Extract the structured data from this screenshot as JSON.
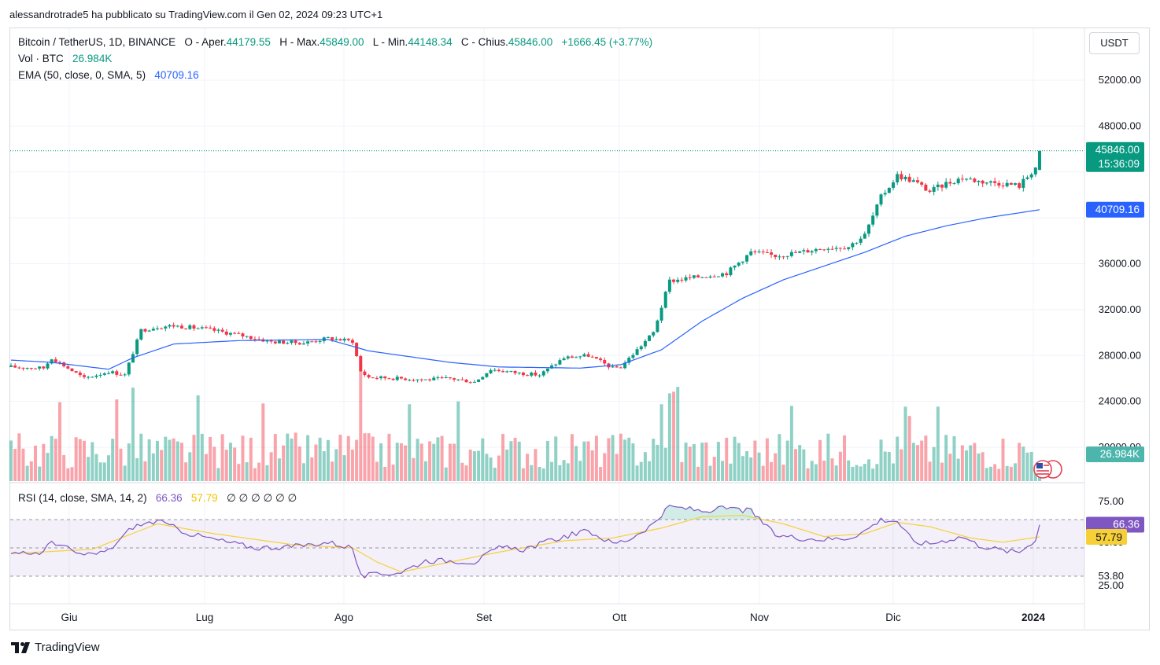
{
  "header": {
    "published_by": "alessandrotrade5 ha pubblicato su TradingView.com il Gen 02, 2024 09:23 UTC+1"
  },
  "symbol": {
    "name": "Bitcoin / TetherUS, 1D, BINANCE",
    "open_label": "O - Aper.",
    "open": "44179.55",
    "high_label": "H - Max.",
    "high": "45849.00",
    "low_label": "L - Min.",
    "low": "44148.34",
    "close_label": "C - Chius.",
    "close": "45846.00",
    "change": "+1666.45 (+3.77%)"
  },
  "volume_legend": {
    "label": "Vol · BTC",
    "value": "26.984K"
  },
  "ema_legend": {
    "label": "EMA (50, close, 0, SMA, 5)",
    "value": "40709.16"
  },
  "rsi_legend": {
    "label": "RSI (14, close, SMA, 14, 2)",
    "rsi": "66.36",
    "sma": "57.79",
    "extras": "∅ ∅ ∅ ∅ ∅ ∅"
  },
  "currency_button": "USDT",
  "footer": {
    "brand": "TradingView"
  },
  "colors": {
    "up": "#089981",
    "down": "#f23645",
    "ema": "#2962ff",
    "rsi": "#7e57c2",
    "rsi_sma": "#f7d038"
  },
  "chart_data": {
    "type": "candlestick",
    "price_axis": {
      "ticks": [
        "52000.00",
        "48000.00",
        "36000.00",
        "32000.00",
        "28000.00",
        "24000.00",
        "20000.00"
      ],
      "ylim": [
        19000,
        53500
      ]
    },
    "time_axis": {
      "labels": [
        "Giu",
        "Lug",
        "Ago",
        "Set",
        "Ott",
        "Nov",
        "Dic",
        "2024"
      ]
    },
    "price_badges": {
      "last": "45846.00",
      "countdown": "15:36:09",
      "ema": "40709.16",
      "volume": "26.984K"
    },
    "rsi_axis": {
      "ticks": [
        "75.00",
        "63.39",
        "53.80",
        "25.00"
      ],
      "badges": {
        "rsi": "66.36",
        "sma": "57.79"
      },
      "bands": [
        70,
        30
      ]
    },
    "price_anchors": [
      [
        0,
        27000
      ],
      [
        8,
        26900
      ],
      [
        10,
        27800
      ],
      [
        18,
        26000
      ],
      [
        24,
        26600
      ],
      [
        28,
        26300
      ],
      [
        32,
        30200
      ],
      [
        36,
        30500
      ],
      [
        40,
        30600
      ],
      [
        48,
        30300
      ],
      [
        56,
        29800
      ],
      [
        64,
        29200
      ],
      [
        72,
        29100
      ],
      [
        78,
        29500
      ],
      [
        84,
        29250
      ],
      [
        86,
        26600
      ],
      [
        88,
        26100
      ],
      [
        96,
        26000
      ],
      [
        102,
        25900
      ],
      [
        108,
        26000
      ],
      [
        114,
        25700
      ],
      [
        118,
        26800
      ],
      [
        124,
        26500
      ],
      [
        130,
        26300
      ],
      [
        136,
        27800
      ],
      [
        142,
        28000
      ],
      [
        148,
        26900
      ],
      [
        150,
        27000
      ],
      [
        154,
        28500
      ],
      [
        158,
        30000
      ],
      [
        162,
        34500
      ],
      [
        166,
        34700
      ],
      [
        170,
        34900
      ],
      [
        176,
        35200
      ],
      [
        182,
        37000
      ],
      [
        188,
        36700
      ],
      [
        194,
        37000
      ],
      [
        200,
        37400
      ],
      [
        206,
        37500
      ],
      [
        210,
        38500
      ],
      [
        214,
        41800
      ],
      [
        218,
        43700
      ],
      [
        222,
        43200
      ],
      [
        226,
        42300
      ],
      [
        230,
        43000
      ],
      [
        234,
        43500
      ],
      [
        238,
        43200
      ],
      [
        244,
        43000
      ],
      [
        248,
        42800
      ],
      [
        252,
        44400
      ],
      [
        253,
        45846
      ]
    ],
    "ema_anchors": [
      [
        0,
        27600
      ],
      [
        10,
        27400
      ],
      [
        24,
        26800
      ],
      [
        30,
        27800
      ],
      [
        40,
        29000
      ],
      [
        56,
        29300
      ],
      [
        78,
        29400
      ],
      [
        88,
        28400
      ],
      [
        108,
        27400
      ],
      [
        120,
        27000
      ],
      [
        140,
        26900
      ],
      [
        150,
        27200
      ],
      [
        160,
        28500
      ],
      [
        170,
        31000
      ],
      [
        180,
        33000
      ],
      [
        190,
        34600
      ],
      [
        200,
        35800
      ],
      [
        210,
        37000
      ],
      [
        220,
        38400
      ],
      [
        230,
        39300
      ],
      [
        240,
        40000
      ],
      [
        253,
        40709.16
      ]
    ],
    "rsi_anchors": [
      [
        0,
        45
      ],
      [
        8,
        47
      ],
      [
        10,
        55
      ],
      [
        18,
        44
      ],
      [
        24,
        48
      ],
      [
        30,
        65
      ],
      [
        36,
        69
      ],
      [
        44,
        60
      ],
      [
        50,
        56
      ],
      [
        60,
        50
      ],
      [
        70,
        51
      ],
      [
        78,
        54
      ],
      [
        84,
        50
      ],
      [
        86,
        30
      ],
      [
        90,
        31
      ],
      [
        96,
        33
      ],
      [
        102,
        41
      ],
      [
        108,
        41
      ],
      [
        114,
        40
      ],
      [
        120,
        50
      ],
      [
        126,
        49
      ],
      [
        136,
        58
      ],
      [
        142,
        62
      ],
      [
        148,
        53
      ],
      [
        152,
        56
      ],
      [
        158,
        67
      ],
      [
        162,
        79
      ],
      [
        166,
        78
      ],
      [
        170,
        76
      ],
      [
        176,
        78
      ],
      [
        182,
        76
      ],
      [
        188,
        59
      ],
      [
        194,
        57
      ],
      [
        200,
        56
      ],
      [
        206,
        57
      ],
      [
        210,
        62
      ],
      [
        214,
        70
      ],
      [
        218,
        69
      ],
      [
        222,
        54
      ],
      [
        226,
        53
      ],
      [
        234,
        58
      ],
      [
        238,
        52
      ],
      [
        244,
        48
      ],
      [
        248,
        47
      ],
      [
        252,
        56
      ],
      [
        253,
        66.36
      ]
    ],
    "rsi_sma_anchors": [
      [
        0,
        46
      ],
      [
        20,
        49
      ],
      [
        36,
        67
      ],
      [
        50,
        60
      ],
      [
        70,
        52
      ],
      [
        84,
        50
      ],
      [
        90,
        40
      ],
      [
        96,
        33
      ],
      [
        108,
        40
      ],
      [
        120,
        47
      ],
      [
        136,
        55
      ],
      [
        148,
        57
      ],
      [
        160,
        64
      ],
      [
        170,
        72
      ],
      [
        180,
        73
      ],
      [
        190,
        67
      ],
      [
        200,
        58
      ],
      [
        210,
        60
      ],
      [
        218,
        68
      ],
      [
        226,
        65
      ],
      [
        236,
        57
      ],
      [
        244,
        54
      ],
      [
        253,
        57.79
      ]
    ],
    "volume_spikes": [
      [
        12,
        19500
      ],
      [
        26,
        20200
      ],
      [
        30,
        23100
      ],
      [
        46,
        21200
      ],
      [
        62,
        19200
      ],
      [
        86,
        27000
      ],
      [
        98,
        19000
      ],
      [
        110,
        19700
      ],
      [
        160,
        19000
      ],
      [
        162,
        21700
      ],
      [
        163,
        22100
      ],
      [
        164,
        23300
      ],
      [
        192,
        18600
      ],
      [
        220,
        18400
      ],
      [
        221,
        16100
      ],
      [
        228,
        18400
      ]
    ],
    "candle_count": 254
  }
}
